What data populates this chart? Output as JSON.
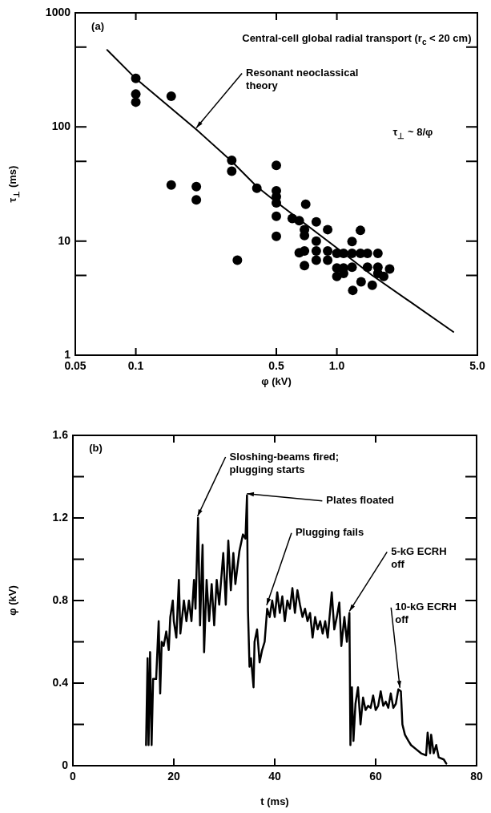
{
  "chart_data": [
    {
      "type": "scatter",
      "title": "Central-cell global radial transport (r$_{c}$ < 20 cm)",
      "xlabel": "φ (kV)",
      "ylabel": "τ$_{⊥}$ (ms)",
      "log": "xy",
      "grid": false,
      "xlim": [
        0.05,
        5
      ],
      "ylim": [
        1,
        1000
      ],
      "xticks": [
        0.05,
        0.1,
        0.5,
        {
          "value": 1,
          "label": "1.0"
        },
        {
          "value": 5,
          "label": "5.0"
        }
      ],
      "yticks": [
        1,
        {
          "value": 5,
          "label": null
        },
        10,
        {
          "value": 50,
          "label": null
        },
        100,
        {
          "value": 500,
          "label": null
        },
        1000
      ],
      "annotations": [
        "(a)",
        {
          "text": "Resonant neoclassical theory",
          "x": 0.2,
          "y": 95
        },
        "τ$_{⊥}$ ~ 8/φ"
      ],
      "series": [
        {
          "type": "scatter",
          "color": "#000000",
          "marker": "circle",
          "x": [
            0.1,
            0.1,
            0.1,
            0.15,
            0.3,
            0.3,
            0.5,
            0.15,
            0.2,
            0.2,
            0.4,
            0.5,
            0.5,
            0.5,
            0.7,
            0.5,
            0.5,
            0.32,
            0.6,
            0.65,
            0.79,
            0.69,
            0.69,
            0.9,
            0.79,
            1.31,
            1.19,
            0.65,
            0.69,
            0.79,
            0.79,
            0.69,
            0.9,
            0.9,
            1.0,
            1.08,
            1.19,
            1.31,
            1.42,
            1.0,
            1.08,
            1.19,
            1.42,
            1.0,
            1.08,
            1.6,
            1.6,
            1.6,
            1.83,
            1.5,
            1.32,
            1.2,
            1.71
          ],
          "values": [
            266,
            194,
            165,
            186,
            51,
            41,
            46,
            31,
            30,
            23,
            29,
            27.6,
            24.5,
            21.6,
            21,
            16.5,
            11,
            6.8,
            15.8,
            15.1,
            14.7,
            12.6,
            11.2,
            12.6,
            10,
            12.4,
            9.9,
            7.9,
            8.2,
            8.2,
            6.8,
            6.1,
            8.2,
            6.8,
            7.8,
            7.8,
            7.8,
            7.8,
            7.8,
            5.8,
            5.8,
            5.9,
            5.9,
            4.9,
            5.2,
            7.8,
            5.9,
            5.2,
            5.7,
            4.1,
            4.4,
            3.7,
            4.9
          ]
        },
        {
          "type": "line",
          "color": "#000000",
          "marker": "none",
          "line_style": "solid",
          "x": [
            0.072,
            0.1,
            0.2,
            0.3,
            0.4,
            0.5,
            1.0,
            1.5,
            3.8
          ],
          "values": [
            473,
            265,
            95,
            50,
            30,
            22,
            8.7,
            5,
            1.6
          ]
        }
      ]
    },
    {
      "type": "line",
      "xlabel": "t (ms)",
      "ylabel": "φ (kV)",
      "grid": false,
      "marker": "none",
      "line_style": "solid",
      "xlim": [
        0,
        80
      ],
      "ylim": [
        0,
        1.6
      ],
      "xticks": [
        0,
        20,
        40,
        60,
        80
      ],
      "yticks": [
        0,
        {
          "value": 0.2,
          "label": null
        },
        0.4,
        {
          "value": 0.6,
          "label": null
        },
        0.8,
        {
          "value": 1.0,
          "label": null
        },
        1.2,
        {
          "value": 1.4,
          "label": null
        },
        1.6
      ],
      "annotations": [
        "(b)",
        {
          "text": "Sloshing-beams fired; plugging starts",
          "x": 24.7,
          "y": 1.2
        },
        {
          "text": "Plates floated",
          "x": 34.5,
          "y": 1.31
        },
        {
          "text": "Plugging fails",
          "x": 38.4,
          "y": 0.77
        },
        {
          "text": "5-kG ECRH off",
          "x": 54.8,
          "y": 0.74
        },
        {
          "text": "10-kG ECRH off",
          "x": 64.8,
          "y": 0.37
        }
      ],
      "x": [
        14.5,
        14.8,
        15.0,
        15.3,
        15.6,
        15.9,
        16.5,
        17.0,
        17.3,
        17.6,
        18,
        18.5,
        19,
        19.3,
        19.8,
        20,
        20.5,
        21,
        21.3,
        22,
        22.5,
        23,
        23.5,
        24,
        24.3,
        24.8,
        25.2,
        25.7,
        26,
        26.5,
        27,
        27.5,
        28,
        28.5,
        29,
        29.8,
        30.3,
        30.8,
        31.3,
        31.8,
        32.2,
        33,
        33.7,
        34.2,
        34.5,
        34.7,
        35,
        35.3,
        35.8,
        36,
        36.5,
        37,
        37.5,
        38,
        38.5,
        39,
        39.5,
        40,
        40.5,
        41,
        41.5,
        42,
        42.5,
        43,
        43.5,
        44,
        44.5,
        45,
        45.5,
        46,
        46.5,
        47,
        47.5,
        48,
        48.5,
        49,
        49.5,
        50,
        50.5,
        51.3,
        51.8,
        52.3,
        52.8,
        53.2,
        53.8,
        54.3,
        54.8,
        55.0,
        55.3,
        55.6,
        56,
        56.5,
        57,
        57.5,
        58,
        58.5,
        59,
        59.5,
        60,
        60.5,
        61,
        61.5,
        62,
        62.5,
        63,
        63.5,
        64,
        64.5,
        65,
        65.3,
        65.8,
        66.5,
        67,
        68,
        69,
        70,
        70.3,
        70.8,
        71,
        71.5,
        72,
        72.5,
        73.5,
        74
      ],
      "series": [
        {
          "color": "#000000",
          "values": [
            0.1,
            0.52,
            0.1,
            0.55,
            0.1,
            0.42,
            0.42,
            0.7,
            0.35,
            0.6,
            0.58,
            0.65,
            0.56,
            0.72,
            0.8,
            0.7,
            0.62,
            0.9,
            0.64,
            0.8,
            0.7,
            0.8,
            0.7,
            0.9,
            0.76,
            1.2,
            0.68,
            1.07,
            0.55,
            0.9,
            0.7,
            0.88,
            0.68,
            0.9,
            0.78,
            1.03,
            0.78,
            1.09,
            0.85,
            1.03,
            0.88,
            1.04,
            1.12,
            1.1,
            1.31,
            0.75,
            0.48,
            0.52,
            0.38,
            0.6,
            0.66,
            0.5,
            0.56,
            0.6,
            0.76,
            0.72,
            0.8,
            0.72,
            0.84,
            0.74,
            0.82,
            0.7,
            0.8,
            0.76,
            0.86,
            0.74,
            0.85,
            0.78,
            0.72,
            0.76,
            0.7,
            0.74,
            0.62,
            0.72,
            0.66,
            0.7,
            0.64,
            0.7,
            0.62,
            0.84,
            0.66,
            0.72,
            0.79,
            0.58,
            0.72,
            0.6,
            0.74,
            0.1,
            0.38,
            0.12,
            0.3,
            0.38,
            0.2,
            0.33,
            0.27,
            0.29,
            0.28,
            0.34,
            0.27,
            0.29,
            0.36,
            0.29,
            0.31,
            0.28,
            0.35,
            0.28,
            0.3,
            0.37,
            0.36,
            0.2,
            0.15,
            0.12,
            0.1,
            0.08,
            0.06,
            0.05,
            0.16,
            0.06,
            0.15,
            0.06,
            0.1,
            0.04,
            0.03,
            0.01
          ]
        }
      ]
    }
  ]
}
